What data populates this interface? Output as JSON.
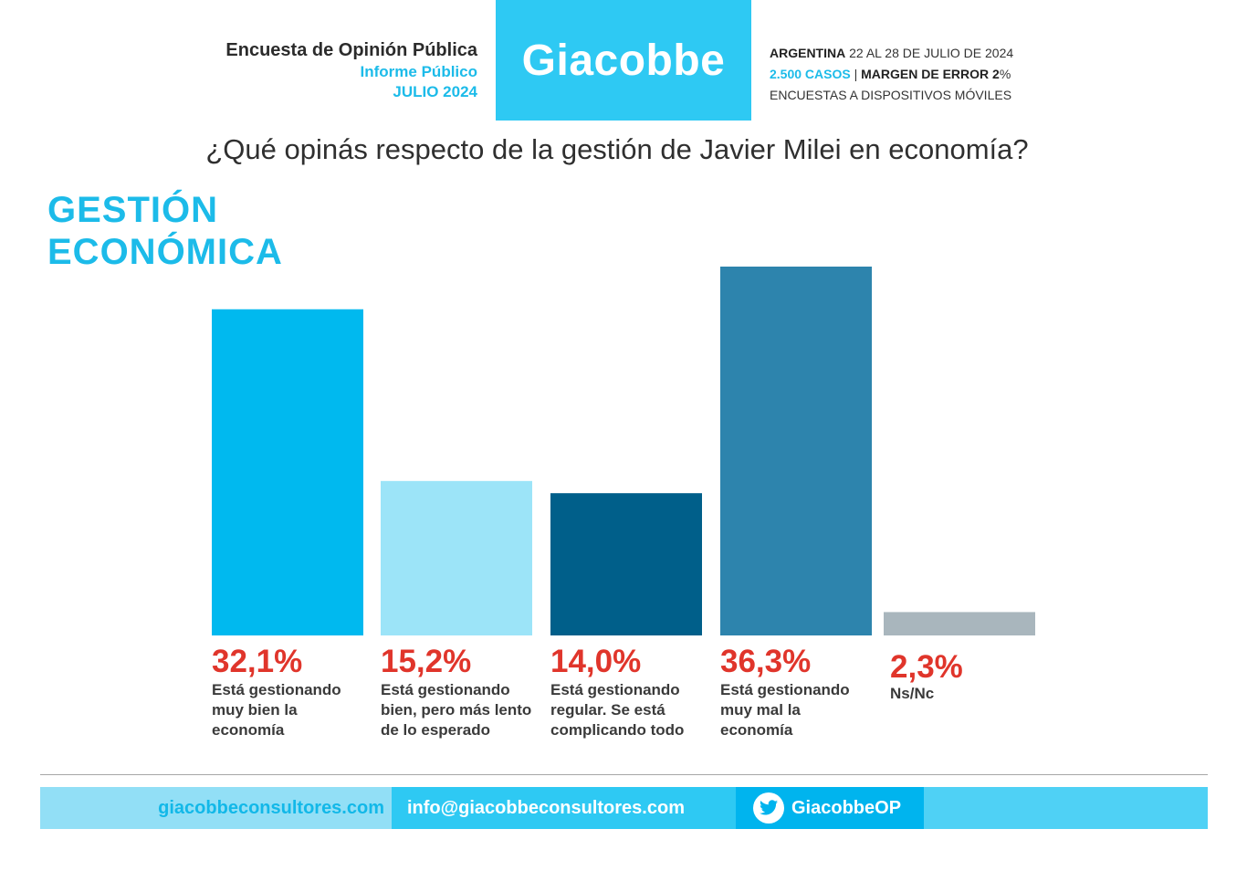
{
  "header": {
    "left_line1": "Encuesta de Opinión Pública",
    "left_line2": "Informe Público",
    "left_line3": "JULIO 2024",
    "logo": "Giacobbe",
    "right_country": "ARGENTINA",
    "right_dates": " 22 AL 28 DE JULIO DE 2024",
    "right_cases": "2.500 CASOS",
    "right_sep": " | ",
    "right_margin_label": "MARGEN DE ERROR 2",
    "right_margin_pct": "%",
    "right_line3": "ENCUESTAS A DISPOSITIVOS MÓVILES"
  },
  "question": "¿Qué opinás respecto de la gestión de Javier Milei en economía?",
  "section_title_1": "GESTIÓN",
  "section_title_2": "ECONÓMICA",
  "chart_data": {
    "type": "bar",
    "categories": [
      "Está gestionando muy bien la economía",
      "Está gestionando bien, pero más lento de lo esperado",
      "Está gestionando regular. Se está complicando todo",
      "Está gestionando muy mal la economía",
      "Ns/Nc"
    ],
    "values": [
      32.1,
      15.2,
      14.0,
      36.3,
      2.3
    ],
    "value_labels": [
      "32,1%",
      "15,2%",
      "14,0%",
      "36,3%",
      "2,3%"
    ],
    "colors": [
      "#00b9ef",
      "#9ce4f8",
      "#005f8a",
      "#2d84ad",
      "#a9b6bd"
    ],
    "label_color": "#e0352b",
    "ylim": [
      0,
      36.3
    ],
    "grid": false,
    "legend": "none"
  },
  "footer": {
    "website": "giacobbeconsultores.com",
    "email": "info@giacobbeconsultores.com",
    "twitter": "GiacobbeOP",
    "twitter_icon": "twitter-bird-icon"
  }
}
